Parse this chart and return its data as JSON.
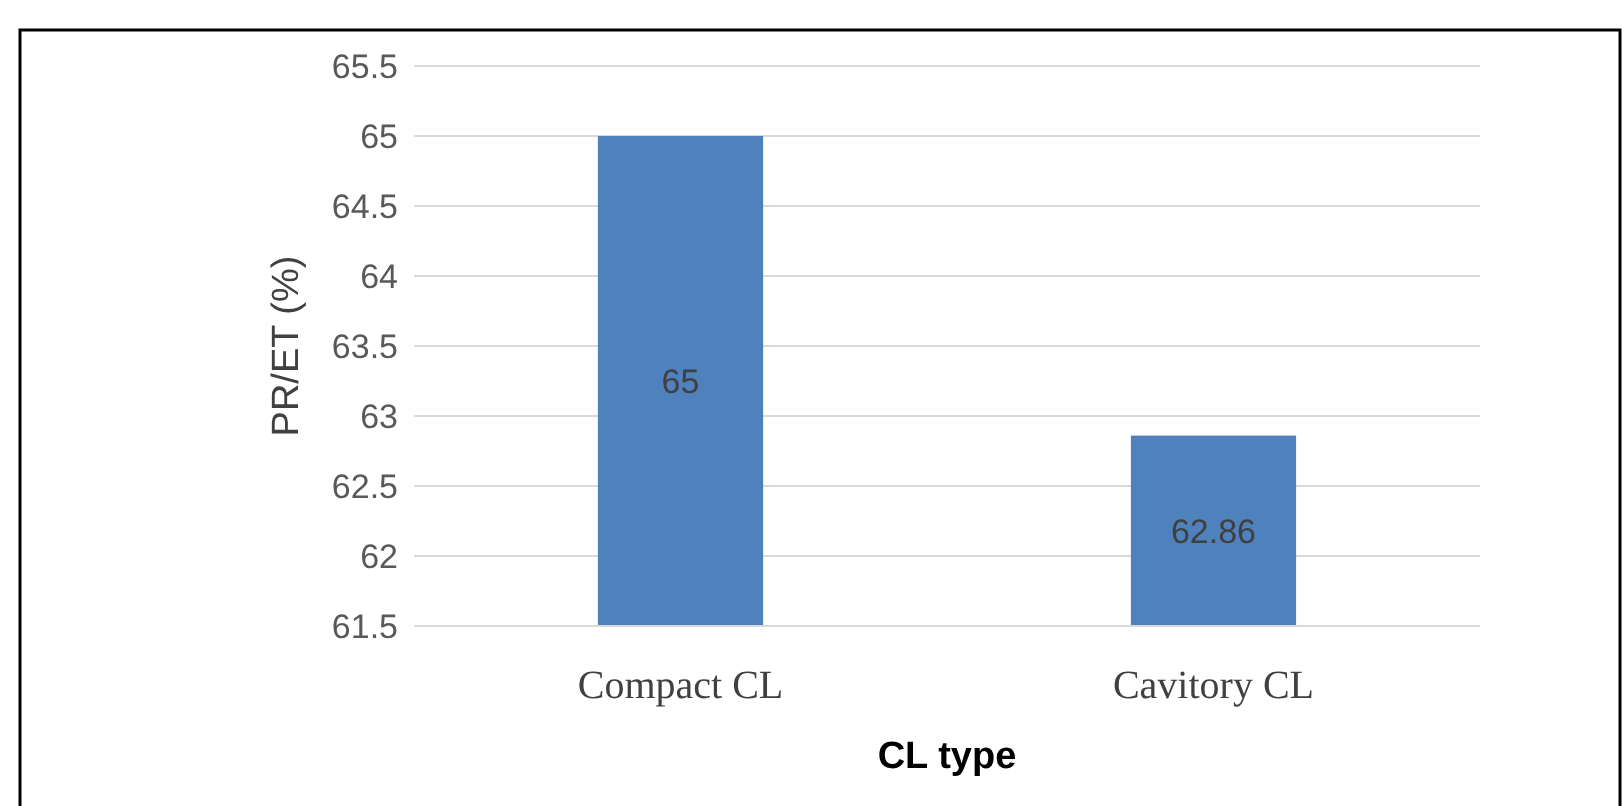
{
  "chart_data": {
    "type": "bar",
    "xlabel": "CL type",
    "ylabel": "PR/ET (%)",
    "categories": [
      "Compact CL",
      "Cavitory CL"
    ],
    "values": [
      65,
      62.86
    ],
    "color": "#4f81bd",
    "ylim": [
      61.5,
      65.5
    ],
    "yticks": [
      61.5,
      62,
      62.5,
      63,
      63.5,
      64,
      64.5,
      65,
      65.5
    ],
    "grid": "y",
    "data_labels": true
  }
}
